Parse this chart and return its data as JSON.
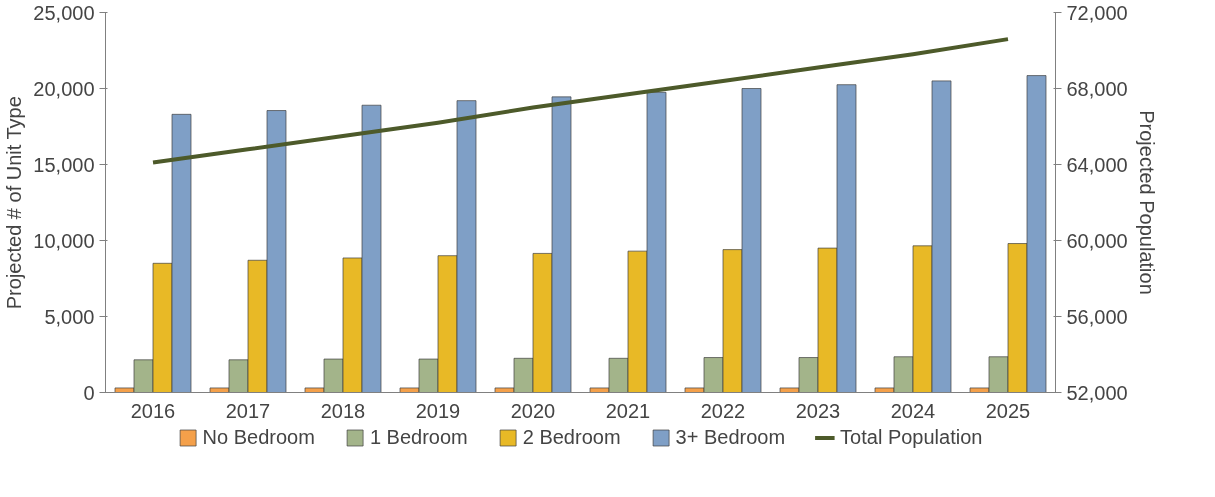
{
  "chart_data": {
    "type": "bar",
    "ylabel": "Projected # of Unit Type",
    "y2label": "Projected Population",
    "categories": [
      "2016",
      "2017",
      "2018",
      "2019",
      "2020",
      "2021",
      "2022",
      "2023",
      "2024",
      "2025"
    ],
    "series": [
      {
        "name": "No Bedroom",
        "color": "#f4a04a",
        "values": [
          300,
          300,
          300,
          300,
          300,
          300,
          300,
          300,
          300,
          300
        ]
      },
      {
        "name": "1 Bedroom",
        "color": "#a3b48a",
        "values": [
          2150,
          2150,
          2200,
          2200,
          2250,
          2250,
          2300,
          2300,
          2350,
          2350
        ]
      },
      {
        "name": "2 Bedroom",
        "color": "#e8b926",
        "values": [
          8500,
          8700,
          8850,
          9000,
          9150,
          9300,
          9400,
          9500,
          9650,
          9800
        ]
      },
      {
        "name": "3+ Bedroom",
        "color": "#7f9fc6",
        "values": [
          18300,
          18550,
          18900,
          19200,
          19450,
          19750,
          20000,
          20250,
          20500,
          20850
        ]
      },
      {
        "name": "Total Population",
        "type": "line",
        "axis": "y2",
        "color": "#4d5a2a",
        "values": [
          64100,
          64800,
          65500,
          66200,
          67000,
          67700,
          68400,
          69100,
          69800,
          70600
        ]
      }
    ],
    "ylim": [
      0,
      25000
    ],
    "yticks": [
      {
        "value": 0,
        "label": "0"
      },
      {
        "value": 5000,
        "label": "5,000"
      },
      {
        "value": 10000,
        "label": "10,000"
      },
      {
        "value": 15000,
        "label": "15,000"
      },
      {
        "value": 20000,
        "label": "20,000"
      },
      {
        "value": 25000,
        "label": "25,000"
      }
    ],
    "y2lim": [
      52000,
      72000
    ],
    "y2ticks": [
      {
        "value": 52000,
        "label": "52,000"
      },
      {
        "value": 56000,
        "label": "56,000"
      },
      {
        "value": 60000,
        "label": "60,000"
      },
      {
        "value": 64000,
        "label": "64,000"
      },
      {
        "value": 68000,
        "label": "68,000"
      },
      {
        "value": 72000,
        "label": "72,000"
      }
    ],
    "legend": "bottom",
    "grid": false
  }
}
